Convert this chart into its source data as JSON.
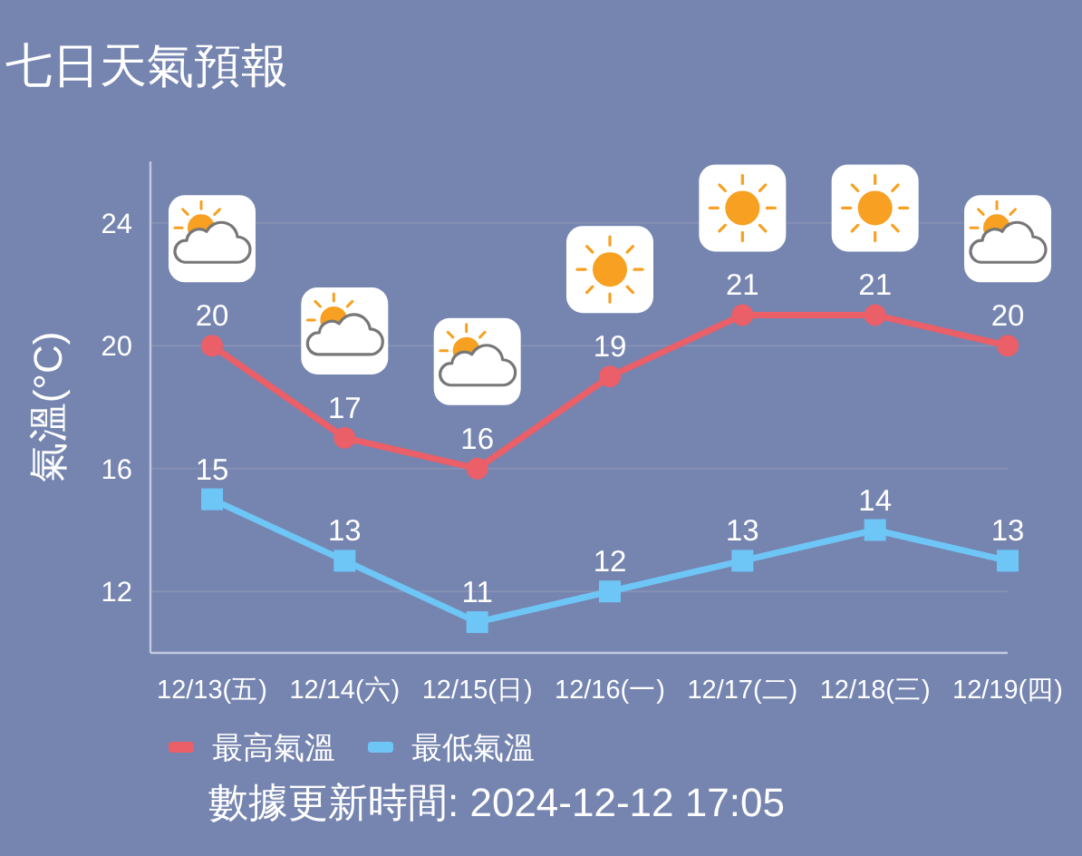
{
  "chart_data": {
    "type": "line",
    "title": "七日天氣預報",
    "ylabel": "氣溫(°C)",
    "categories": [
      "12/13(五)",
      "12/14(六)",
      "12/15(日)",
      "12/16(一)",
      "12/17(二)",
      "12/18(三)",
      "12/19(四)"
    ],
    "series": [
      {
        "name": "最高氣溫",
        "color": "#ea5f68",
        "marker": "circle",
        "values": [
          20,
          17,
          16,
          19,
          21,
          21,
          20
        ]
      },
      {
        "name": "最低氣溫",
        "color": "#6ec6f6",
        "marker": "square",
        "values": [
          15,
          13,
          11,
          12,
          13,
          14,
          13
        ]
      }
    ],
    "ylim": [
      10,
      26
    ],
    "yticks": [
      12,
      16,
      20,
      24
    ],
    "grid": "y",
    "legend": "bottom",
    "data_labels": true,
    "annotations": [
      "數據更新時間: 2024-12-12 17:05"
    ]
  }
}
